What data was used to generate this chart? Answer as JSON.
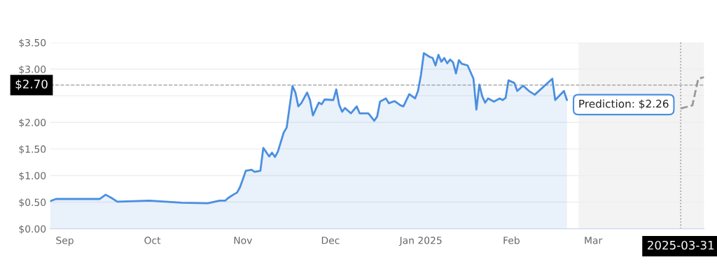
{
  "chart_data": {
    "type": "area",
    "series": [
      {
        "color": "#4a8fe0",
        "x": [
          "2024-08-27",
          "2024-08-29",
          "2024-09-13",
          "2024-09-15",
          "2024-09-17",
          "2024-09-19",
          "2024-09-30",
          "2024-10-11",
          "2024-10-20",
          "2024-10-24",
          "2024-10-26",
          "2024-10-27",
          "2024-10-29",
          "2024-10-30",
          "2024-10-31",
          "2024-11-01",
          "2024-11-02",
          "2024-11-04",
          "2024-11-05",
          "2024-11-07",
          "2024-11-08",
          "2024-11-10",
          "2024-11-11",
          "2024-11-12",
          "2024-11-13",
          "2024-11-15",
          "2024-11-16",
          "2024-11-18",
          "2024-11-19",
          "2024-11-20",
          "2024-11-21",
          "2024-11-23",
          "2024-11-24",
          "2024-11-25",
          "2024-11-27",
          "2024-11-28",
          "2024-11-29",
          "2024-12-02",
          "2024-12-03",
          "2024-12-04",
          "2024-12-05",
          "2024-12-06",
          "2024-12-08",
          "2024-12-10",
          "2024-12-11",
          "2024-12-14",
          "2024-12-16",
          "2024-12-17",
          "2024-12-18",
          "2024-12-20",
          "2024-12-21",
          "2024-12-23",
          "2024-12-25",
          "2024-12-26",
          "2024-12-28",
          "2024-12-30",
          "2024-12-31",
          "2025-01-01",
          "2025-01-02",
          "2025-01-04",
          "2025-01-05",
          "2025-01-06",
          "2025-01-07",
          "2025-01-08",
          "2025-01-09",
          "2025-01-10",
          "2025-01-11",
          "2025-01-12",
          "2025-01-13",
          "2025-01-14",
          "2025-01-15",
          "2025-01-17",
          "2025-01-19",
          "2025-01-20",
          "2025-01-21",
          "2025-01-22",
          "2025-01-23",
          "2025-01-24",
          "2025-01-26",
          "2025-01-28",
          "2025-01-29",
          "2025-01-30",
          "2025-01-31",
          "2025-02-02",
          "2025-02-03",
          "2025-02-05",
          "2025-02-07",
          "2025-02-09",
          "2025-02-15",
          "2025-02-16",
          "2025-02-19",
          "2025-02-20"
        ],
        "values": [
          0.52,
          0.56,
          0.56,
          0.64,
          0.58,
          0.51,
          0.53,
          0.49,
          0.48,
          0.53,
          0.53,
          0.58,
          0.65,
          0.68,
          0.78,
          0.93,
          1.09,
          1.11,
          1.07,
          1.09,
          1.52,
          1.36,
          1.43,
          1.35,
          1.45,
          1.81,
          1.9,
          2.68,
          2.56,
          2.3,
          2.36,
          2.56,
          2.42,
          2.13,
          2.37,
          2.34,
          2.43,
          2.42,
          2.62,
          2.33,
          2.2,
          2.27,
          2.17,
          2.3,
          2.17,
          2.17,
          2.03,
          2.11,
          2.39,
          2.45,
          2.36,
          2.4,
          2.32,
          2.3,
          2.53,
          2.45,
          2.59,
          2.89,
          3.3,
          3.23,
          3.21,
          3.07,
          3.27,
          3.14,
          3.21,
          3.11,
          3.18,
          3.13,
          2.92,
          3.17,
          3.1,
          3.07,
          2.82,
          2.24,
          2.71,
          2.49,
          2.37,
          2.45,
          2.39,
          2.45,
          2.42,
          2.46,
          2.79,
          2.74,
          2.59,
          2.69,
          2.59,
          2.52,
          2.82,
          2.42,
          2.59,
          2.42
        ]
      },
      {
        "type": "line",
        "color": "#999999",
        "line_style": "dashed",
        "x": [
          "2025-03-31",
          "2025-04-04",
          "2025-04-06",
          "2025-04-08"
        ],
        "values": [
          2.26,
          2.32,
          2.82,
          2.85
        ]
      }
    ],
    "xlim": [
      "2024-08-27",
      "2025-04-08"
    ],
    "xticks": [
      {
        "value": "2024-09-01",
        "label": "Sep"
      },
      {
        "value": "2024-10-01",
        "label": "Oct"
      },
      {
        "value": "2024-11-01",
        "label": "Nov"
      },
      {
        "value": "2024-12-01",
        "label": "Dec"
      },
      {
        "value": "2025-01-01",
        "label": "Jan 2025"
      },
      {
        "value": "2025-02-01",
        "label": "Feb"
      },
      {
        "value": "2025-03-01",
        "label": "Mar"
      }
    ],
    "ylim": [
      0,
      3.5
    ],
    "yticks": [
      {
        "value": 0,
        "label": "$0.00"
      },
      {
        "value": 0.5,
        "label": "$0.50"
      },
      {
        "value": 1,
        "label": "$1.00"
      },
      {
        "value": 1.5,
        "label": "$1.50"
      },
      {
        "value": 2,
        "label": "$2.00"
      },
      {
        "value": 2.5,
        "label": null
      },
      {
        "value": 3,
        "label": "$3.00"
      },
      {
        "value": 3.5,
        "label": "$3.50"
      }
    ],
    "grid": "y",
    "ref_lines": [
      {
        "axis": "y",
        "value": 2.7,
        "label": "$2.70",
        "line_style": "dashed",
        "color": "#999999"
      },
      {
        "axis": "x",
        "value": "2025-03-31",
        "label": "2025-03-31",
        "line_style": "dotted",
        "color": "#999999"
      }
    ],
    "bands": [
      {
        "axis": "x",
        "from": "2025-02-24",
        "to": "2025-04-08",
        "color": "#f3f3f3"
      }
    ],
    "annotations": [
      {
        "text": "Prediction: $2.26",
        "x": "2025-03-31",
        "y": 2.26
      }
    ]
  }
}
